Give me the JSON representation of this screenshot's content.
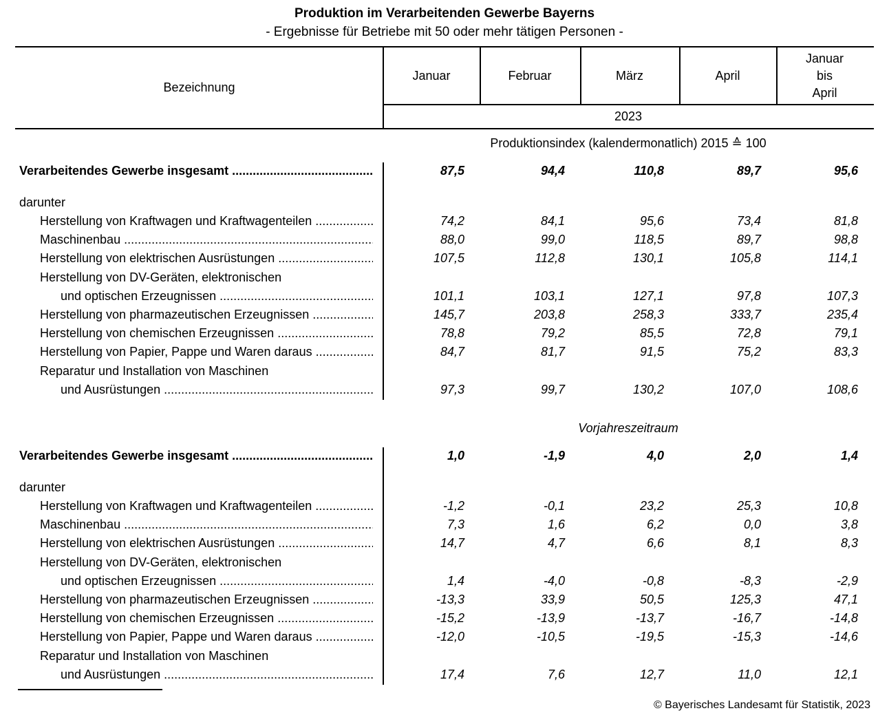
{
  "title": "Produktion im Verarbeitenden Gewerbe Bayerns",
  "subtitle": "- Ergebnisse für Betriebe mit 50 oder mehr tätigen Personen -",
  "header": {
    "label_col": "Bezeichnung",
    "columns": [
      "Januar",
      "Februar",
      "März",
      "April",
      "Januar\nbis\nApril"
    ],
    "year": "2023"
  },
  "sections": [
    {
      "heading": "Produktionsindex (kalendermonatlich) 2015 ≙ 100",
      "heading_italic": false,
      "total": {
        "label": "Verarbeitendes Gewerbe insgesamt",
        "values": [
          "87,5",
          "94,4",
          "110,8",
          "89,7",
          "95,6"
        ]
      },
      "sub_label": "darunter",
      "rows": [
        {
          "label": "Herstellung von Kraftwagen und Kraftwagenteilen",
          "values": [
            "74,2",
            "84,1",
            "95,6",
            "73,4",
            "81,8"
          ]
        },
        {
          "label": "Maschinenbau",
          "values": [
            "88,0",
            "99,0",
            "118,5",
            "89,7",
            "98,8"
          ]
        },
        {
          "label": "Herstellung von elektrischen Ausrüstungen",
          "values": [
            "107,5",
            "112,8",
            "130,1",
            "105,8",
            "114,1"
          ]
        },
        {
          "label": "Herstellung von DV-Geräten, elektronischen",
          "label2": "und optischen Erzeugnissen",
          "values": [
            "101,1",
            "103,1",
            "127,1",
            "97,8",
            "107,3"
          ]
        },
        {
          "label": "Herstellung von pharmazeutischen Erzeugnissen",
          "values": [
            "145,7",
            "203,8",
            "258,3",
            "333,7",
            "235,4"
          ]
        },
        {
          "label": "Herstellung von chemischen Erzeugnissen",
          "values": [
            "78,8",
            "79,2",
            "85,5",
            "72,8",
            "79,1"
          ]
        },
        {
          "label": "Herstellung von Papier, Pappe und Waren daraus",
          "values": [
            "84,7",
            "81,7",
            "91,5",
            "75,2",
            "83,3"
          ]
        },
        {
          "label": "Reparatur und Installation von Maschinen",
          "label2": "und Ausrüstungen",
          "values": [
            "97,3",
            "99,7",
            "130,2",
            "107,0",
            "108,6"
          ]
        }
      ]
    },
    {
      "heading": "Vorjahreszeitraum",
      "heading_italic": true,
      "total": {
        "label": "Verarbeitendes Gewerbe insgesamt",
        "values": [
          "1,0",
          "-1,9",
          "4,0",
          "2,0",
          "1,4"
        ]
      },
      "sub_label": "darunter",
      "rows": [
        {
          "label": "Herstellung von Kraftwagen und Kraftwagenteilen",
          "values": [
            "-1,2",
            "-0,1",
            "23,2",
            "25,3",
            "10,8"
          ]
        },
        {
          "label": "Maschinenbau",
          "values": [
            "7,3",
            "1,6",
            "6,2",
            "0,0",
            "3,8"
          ]
        },
        {
          "label": "Herstellung von elektrischen Ausrüstungen",
          "values": [
            "14,7",
            "4,7",
            "6,6",
            "8,1",
            "8,3"
          ]
        },
        {
          "label": "Herstellung von DV-Geräten, elektronischen",
          "label2": "und optischen Erzeugnissen",
          "values": [
            "1,4",
            "-4,0",
            "-0,8",
            "-8,3",
            "-2,9"
          ]
        },
        {
          "label": "Herstellung von pharmazeutischen Erzeugnissen",
          "values": [
            "-13,3",
            "33,9",
            "50,5",
            "125,3",
            "47,1"
          ]
        },
        {
          "label": "Herstellung von chemischen Erzeugnissen",
          "values": [
            "-15,2",
            "-13,9",
            "-13,7",
            "-16,7",
            "-14,8"
          ]
        },
        {
          "label": "Herstellung von Papier, Pappe und Waren daraus",
          "values": [
            "-12,0",
            "-10,5",
            "-19,5",
            "-15,3",
            "-14,6"
          ]
        },
        {
          "label": "Reparatur und Installation von Maschinen",
          "label2": "und Ausrüstungen",
          "values": [
            "17,4",
            "7,6",
            "12,7",
            "11,0",
            "12,1"
          ]
        }
      ]
    }
  ],
  "footer": {
    "copyright": "© Bayerisches Landesamt für Statistik, 2023"
  }
}
